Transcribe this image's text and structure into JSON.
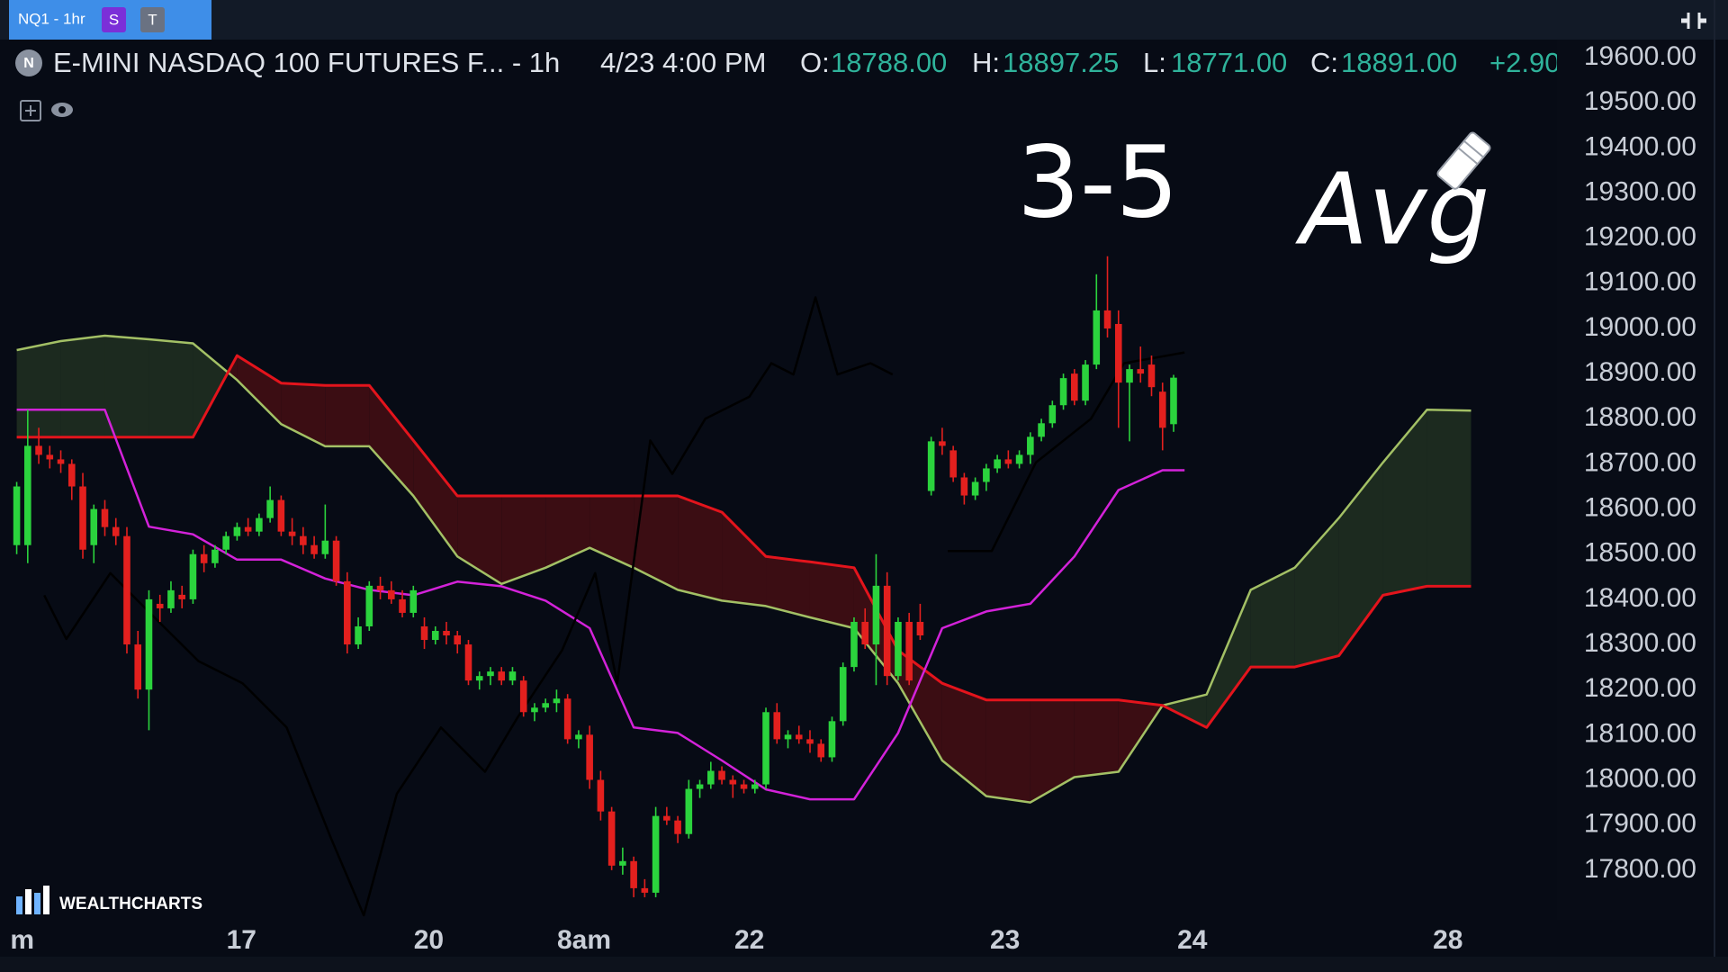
{
  "toolbar": {
    "tab": "NQ1 - 1hr",
    "badge_s": "S",
    "badge_t": "T"
  },
  "legend": {
    "icon": "N",
    "symbol": "E-MINI NASDAQ 100 FUTURES F... - 1h",
    "time": "4/23 4:00 PM",
    "o_label": "O:",
    "o": "18788.00",
    "h_label": "H:",
    "h": "18897.25",
    "l_label": "L:",
    "l": "18771.00",
    "c_label": "C:",
    "c": "18891.00",
    "change": "+2.90"
  },
  "annotations": [
    "3-5",
    "Avg"
  ],
  "brand": "WEALTHCHARTS",
  "chart_data": {
    "type": "candlestick",
    "up_color": "#2bd33d",
    "down_color": "#e3201e",
    "xlim": [
      -0.7,
      139.8
    ],
    "ylim": [
      17690,
      19630
    ],
    "xticks": [
      {
        "value": 0.5,
        "label": "m"
      },
      {
        "value": 20.4,
        "label": "17"
      },
      {
        "value": 37.4,
        "label": "20"
      },
      {
        "value": 51.5,
        "label": "8am"
      },
      {
        "value": 66.5,
        "label": "22"
      },
      {
        "value": 89.7,
        "label": "23"
      },
      {
        "value": 106.7,
        "label": "24"
      },
      {
        "value": 129.9,
        "label": "28"
      }
    ],
    "yticks": [
      {
        "value": 19600,
        "label": "19600.00"
      },
      {
        "value": 19500,
        "label": "19500.00"
      },
      {
        "value": 19400,
        "label": "19400.00"
      },
      {
        "value": 19300,
        "label": "19300.00"
      },
      {
        "value": 19200,
        "label": "19200.00"
      },
      {
        "value": 19100,
        "label": "19100.00"
      },
      {
        "value": 19000,
        "label": "19000.00"
      },
      {
        "value": 18900,
        "label": "18900.00"
      },
      {
        "value": 18800,
        "label": "18800.00"
      },
      {
        "value": 18700,
        "label": "18700.00"
      },
      {
        "value": 18600,
        "label": "18600.00"
      },
      {
        "value": 18500,
        "label": "18500.00"
      },
      {
        "value": 18400,
        "label": "18400.00"
      },
      {
        "value": 18300,
        "label": "18300.00"
      },
      {
        "value": 18200,
        "label": "18200.00"
      },
      {
        "value": 18100,
        "label": "18100.00"
      },
      {
        "value": 18000,
        "label": "18000.00"
      },
      {
        "value": 17900,
        "label": "17900.00"
      },
      {
        "value": 17800,
        "label": "17800.00"
      }
    ],
    "cloud": {
      "color_a": "#a3c065",
      "color_b": "#e3141c",
      "fill_up": "#1c2a1f",
      "fill_down": "#3b0d13",
      "x": [
        0,
        4,
        8,
        12,
        16,
        20,
        24,
        28,
        32,
        36,
        40,
        44,
        48,
        52,
        56,
        60,
        64,
        68,
        72,
        76,
        80,
        84,
        88,
        92,
        96,
        100,
        104,
        108,
        112,
        116,
        120,
        124,
        128,
        132
      ],
      "lead_a": [
        18952,
        18972,
        18984,
        18976,
        18967,
        18886,
        18788,
        18739,
        18739,
        18629,
        18495,
        18434,
        18470,
        18514,
        18470,
        18421,
        18397,
        18385,
        18360,
        18336,
        18214,
        18043,
        17964,
        17950,
        18006,
        18018,
        18165,
        18189,
        18421,
        18470,
        18580,
        18703,
        18820,
        18818
      ],
      "lead_b": [
        18759,
        18759,
        18759,
        18759,
        18759,
        18940,
        18879,
        18874,
        18874,
        18752,
        18629,
        18629,
        18629,
        18629,
        18629,
        18629,
        18593,
        18495,
        18483,
        18470,
        18287,
        18214,
        18177,
        18177,
        18177,
        18177,
        18165,
        18116,
        18250,
        18250,
        18275,
        18409,
        18429,
        18429
      ]
    },
    "lines": [
      {
        "color": "#d322d9",
        "x": [
          0,
          4,
          8,
          12,
          16,
          20,
          24,
          28,
          32,
          36,
          40,
          44,
          48,
          52,
          56,
          60,
          64,
          68,
          72,
          76,
          80,
          84,
          88,
          92,
          96,
          100,
          104,
          106
        ],
        "values": [
          18820,
          18820,
          18820,
          18561,
          18544,
          18488,
          18488,
          18446,
          18421,
          18409,
          18439,
          18429,
          18397,
          18336,
          18116,
          18104,
          18043,
          17979,
          17957,
          17957,
          18104,
          18336,
          18373,
          18390,
          18495,
          18642,
          18686,
          18686
        ]
      },
      {
        "color": "#000000",
        "x": [
          2.5,
          4.5,
          8.5,
          12.5,
          16.5,
          20.5,
          24.5,
          28.5,
          31.5,
          34.5,
          38.5,
          42.5,
          45.5,
          49.5,
          52.5,
          54.5,
          57.5,
          59.5,
          62.5,
          66.5,
          68.5,
          70.5,
          72.5,
          74.5,
          77.5,
          79.5
        ],
        "values": [
          18409,
          18312,
          18458,
          18360,
          18263,
          18214,
          18116,
          17872,
          17700,
          17969,
          18116,
          18018,
          18140,
          18287,
          18458,
          18214,
          18752,
          18678,
          18800,
          18849,
          18923,
          18898,
          19069,
          18898,
          18923,
          18898
        ]
      },
      {
        "color": "#000000",
        "x": [
          84.5,
          88.5,
          92.5,
          97.5,
          100.5,
          106
        ],
        "values": [
          18507,
          18507,
          18703,
          18800,
          18923,
          18947
        ]
      }
    ],
    "candles": [
      [
        18520,
        18660,
        18500,
        18650
      ],
      [
        18520,
        18820,
        18480,
        18740
      ],
      [
        18740,
        18780,
        18700,
        18720
      ],
      [
        18720,
        18740,
        18690,
        18710
      ],
      [
        18710,
        18730,
        18680,
        18700
      ],
      [
        18700,
        18710,
        18620,
        18650
      ],
      [
        18650,
        18680,
        18490,
        18510
      ],
      [
        18520,
        18610,
        18480,
        18600
      ],
      [
        18600,
        18620,
        18540,
        18560
      ],
      [
        18560,
        18580,
        18520,
        18540
      ],
      [
        18540,
        18560,
        18280,
        18300
      ],
      [
        18300,
        18330,
        18180,
        18200
      ],
      [
        18200,
        18420,
        18110,
        18400
      ],
      [
        18390,
        18410,
        18350,
        18380
      ],
      [
        18380,
        18440,
        18370,
        18420
      ],
      [
        18410,
        18430,
        18380,
        18400
      ],
      [
        18400,
        18510,
        18390,
        18500
      ],
      [
        18500,
        18520,
        18460,
        18480
      ],
      [
        18480,
        18520,
        18470,
        18510
      ],
      [
        18510,
        18550,
        18500,
        18540
      ],
      [
        18540,
        18570,
        18530,
        18560
      ],
      [
        18560,
        18580,
        18540,
        18550
      ],
      [
        18550,
        18590,
        18540,
        18580
      ],
      [
        18580,
        18650,
        18570,
        18620
      ],
      [
        18620,
        18630,
        18540,
        18550
      ],
      [
        18550,
        18580,
        18520,
        18540
      ],
      [
        18540,
        18560,
        18500,
        18520
      ],
      [
        18520,
        18540,
        18490,
        18500
      ],
      [
        18500,
        18610,
        18490,
        18530
      ],
      [
        18530,
        18540,
        18430,
        18440
      ],
      [
        18440,
        18460,
        18280,
        18300
      ],
      [
        18300,
        18360,
        18290,
        18340
      ],
      [
        18340,
        18440,
        18330,
        18430
      ],
      [
        18430,
        18450,
        18400,
        18420
      ],
      [
        18420,
        18440,
        18390,
        18400
      ],
      [
        18400,
        18420,
        18360,
        18370
      ],
      [
        18370,
        18430,
        18360,
        18420
      ],
      [
        18340,
        18360,
        18290,
        18310
      ],
      [
        18310,
        18340,
        18300,
        18330
      ],
      [
        18330,
        18350,
        18300,
        18320
      ],
      [
        18320,
        18330,
        18280,
        18300
      ],
      [
        18300,
        18310,
        18210,
        18220
      ],
      [
        18220,
        18240,
        18200,
        18230
      ],
      [
        18230,
        18250,
        18210,
        18240
      ],
      [
        18240,
        18250,
        18210,
        18220
      ],
      [
        18220,
        18250,
        18210,
        18240
      ],
      [
        18220,
        18230,
        18140,
        18150
      ],
      [
        18150,
        18170,
        18130,
        18160
      ],
      [
        18160,
        18180,
        18150,
        18170
      ],
      [
        18170,
        18200,
        18150,
        18180
      ],
      [
        18180,
        18190,
        18080,
        18090
      ],
      [
        18090,
        18110,
        18070,
        18100
      ],
      [
        18100,
        18120,
        17980,
        18000
      ],
      [
        18000,
        18020,
        17910,
        17930
      ],
      [
        17930,
        17940,
        17800,
        17810
      ],
      [
        17810,
        17850,
        17790,
        17820
      ],
      [
        17820,
        17830,
        17740,
        17760
      ],
      [
        17760,
        17780,
        17740,
        17750
      ],
      [
        17750,
        17940,
        17740,
        17920
      ],
      [
        17920,
        17940,
        17900,
        17910
      ],
      [
        17910,
        17920,
        17860,
        17880
      ],
      [
        17880,
        18000,
        17870,
        17980
      ],
      [
        17980,
        18000,
        17960,
        17990
      ],
      [
        17990,
        18040,
        17980,
        18020
      ],
      [
        18020,
        18030,
        17990,
        18000
      ],
      [
        18000,
        18010,
        17960,
        17990
      ],
      [
        17990,
        18000,
        17970,
        17980
      ],
      [
        17980,
        18000,
        17970,
        17990
      ],
      [
        17990,
        18160,
        17980,
        18150
      ],
      [
        18150,
        18170,
        18080,
        18090
      ],
      [
        18090,
        18110,
        18070,
        18100
      ],
      [
        18100,
        18120,
        18080,
        18090
      ],
      [
        18090,
        18110,
        18060,
        18080
      ],
      [
        18080,
        18090,
        18040,
        18050
      ],
      [
        18050,
        18140,
        18040,
        18130
      ],
      [
        18130,
        18260,
        18120,
        18250
      ],
      [
        18250,
        18360,
        18240,
        18350
      ],
      [
        18350,
        18380,
        18290,
        18300
      ],
      [
        18300,
        18500,
        18210,
        18430
      ],
      [
        18430,
        18460,
        18210,
        18230
      ],
      [
        18230,
        18360,
        18220,
        18350
      ],
      [
        18350,
        18370,
        18210,
        18220
      ],
      [
        18350,
        18390,
        18310,
        18320
      ],
      [
        18640,
        18760,
        18630,
        18750
      ],
      [
        18750,
        18780,
        18720,
        18740
      ],
      [
        18730,
        18740,
        18660,
        18670
      ],
      [
        18670,
        18680,
        18610,
        18630
      ],
      [
        18630,
        18670,
        18620,
        18660
      ],
      [
        18660,
        18700,
        18640,
        18690
      ],
      [
        18690,
        18720,
        18680,
        18710
      ],
      [
        18710,
        18730,
        18690,
        18700
      ],
      [
        18700,
        18730,
        18690,
        18720
      ],
      [
        18720,
        18770,
        18700,
        18760
      ],
      [
        18760,
        18800,
        18750,
        18790
      ],
      [
        18790,
        18840,
        18780,
        18830
      ],
      [
        18830,
        18900,
        18820,
        18890
      ],
      [
        18900,
        18910,
        18830,
        18840
      ],
      [
        18840,
        18930,
        18830,
        18920
      ],
      [
        18920,
        19120,
        18910,
        19040
      ],
      [
        19040,
        19160,
        18980,
        19000
      ],
      [
        19010,
        19040,
        18780,
        18880
      ],
      [
        18880,
        18920,
        18750,
        18910
      ],
      [
        18910,
        18960,
        18880,
        18900
      ],
      [
        18920,
        18940,
        18850,
        18870
      ],
      [
        18860,
        18880,
        18730,
        18780
      ],
      [
        18788,
        18897.25,
        18771,
        18891
      ]
    ]
  }
}
